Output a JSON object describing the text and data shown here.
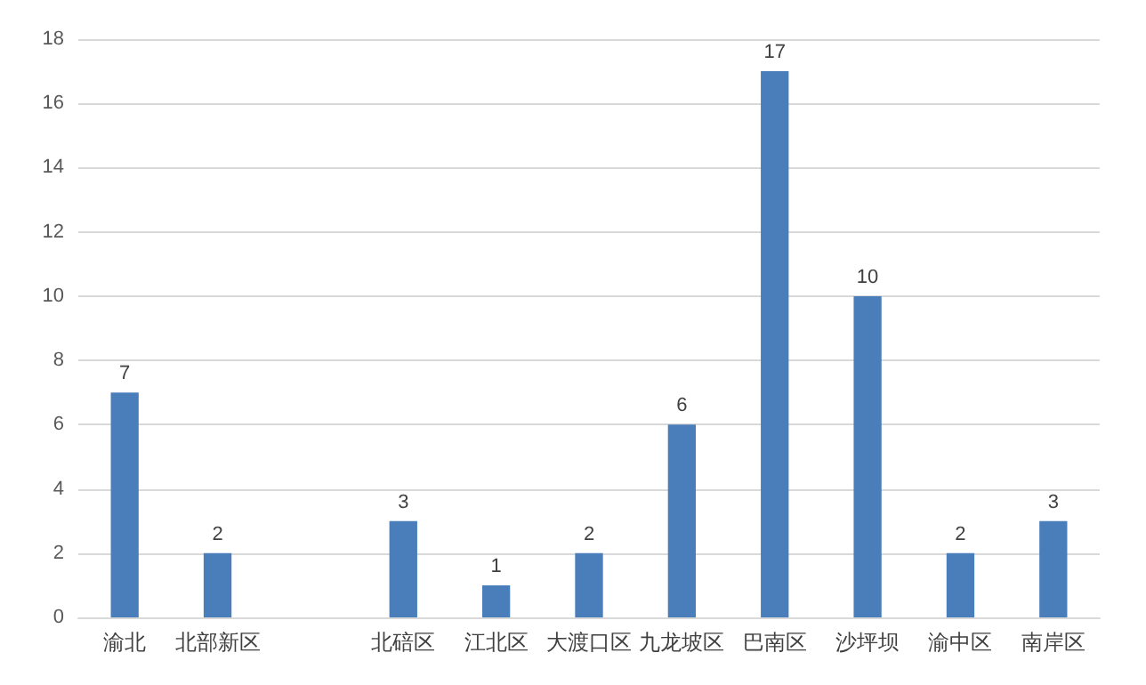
{
  "chart_data": {
    "type": "bar",
    "categories": [
      "渝北",
      "北部新区",
      null,
      "北碚区",
      "江北区",
      "大渡口区",
      "九龙坡区",
      "巴南区",
      "沙坪坝",
      "渝中区",
      "南岸区"
    ],
    "values": [
      7,
      2,
      null,
      3,
      1,
      2,
      6,
      17,
      10,
      2,
      3
    ],
    "color": "#4a7ebb",
    "ylim": [
      0,
      18
    ],
    "yticks": [
      0,
      2,
      4,
      6,
      8,
      10,
      12,
      14,
      16,
      18
    ],
    "grid": "y",
    "data_labels": true
  }
}
